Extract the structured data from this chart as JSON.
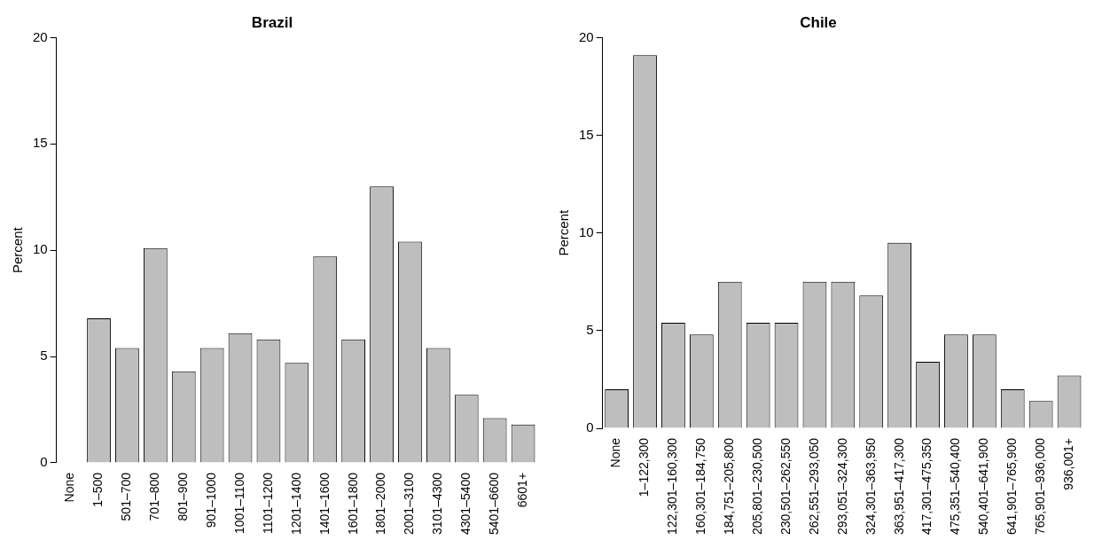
{
  "chart_data": [
    {
      "type": "bar",
      "title": "Brazil",
      "ylabel": "Percent",
      "categories": [
        "None",
        "1–500",
        "501–700",
        "701–800",
        "801–900",
        "901–1000",
        "1001–1100",
        "1101–1200",
        "1201–1400",
        "1401–1600",
        "1601–1800",
        "1801–2000",
        "2001–3100",
        "3101–4300",
        "4301–5400",
        "5401–6600",
        "6601+"
      ],
      "values": [
        0,
        6.8,
        5.4,
        10.1,
        4.3,
        5.4,
        6.1,
        5.8,
        4.7,
        9.7,
        5.8,
        13.0,
        10.4,
        5.4,
        3.2,
        2.1,
        1.8
      ],
      "color": "#bebebe",
      "ylim": [
        0,
        20
      ],
      "yticks": [
        0,
        5,
        10,
        15,
        20
      ],
      "grid": false,
      "legend": false
    },
    {
      "type": "bar",
      "title": "Chile",
      "ylabel": "Percent",
      "categories": [
        "None",
        "1–122,300",
        "122,301–160,300",
        "160,301–184,750",
        "184,751–205,800",
        "205,801–230,500",
        "230,501–262,550",
        "262,551–293,050",
        "293,051–324,300",
        "324,301–363,950",
        "363,951–417,300",
        "417,301–475,350",
        "475,351–540,400",
        "540,401–641,900",
        "641,901–765,900",
        "765,901–936,000",
        "936,001+"
      ],
      "values": [
        2.0,
        19.1,
        5.4,
        4.8,
        7.5,
        5.4,
        5.4,
        7.5,
        7.5,
        6.8,
        9.5,
        3.4,
        4.8,
        4.8,
        2.0,
        1.4,
        2.7
      ],
      "color": "#bebebe",
      "ylim": [
        0,
        20
      ],
      "yticks": [
        0,
        5,
        10,
        15,
        20
      ],
      "grid": false,
      "legend": false
    }
  ]
}
